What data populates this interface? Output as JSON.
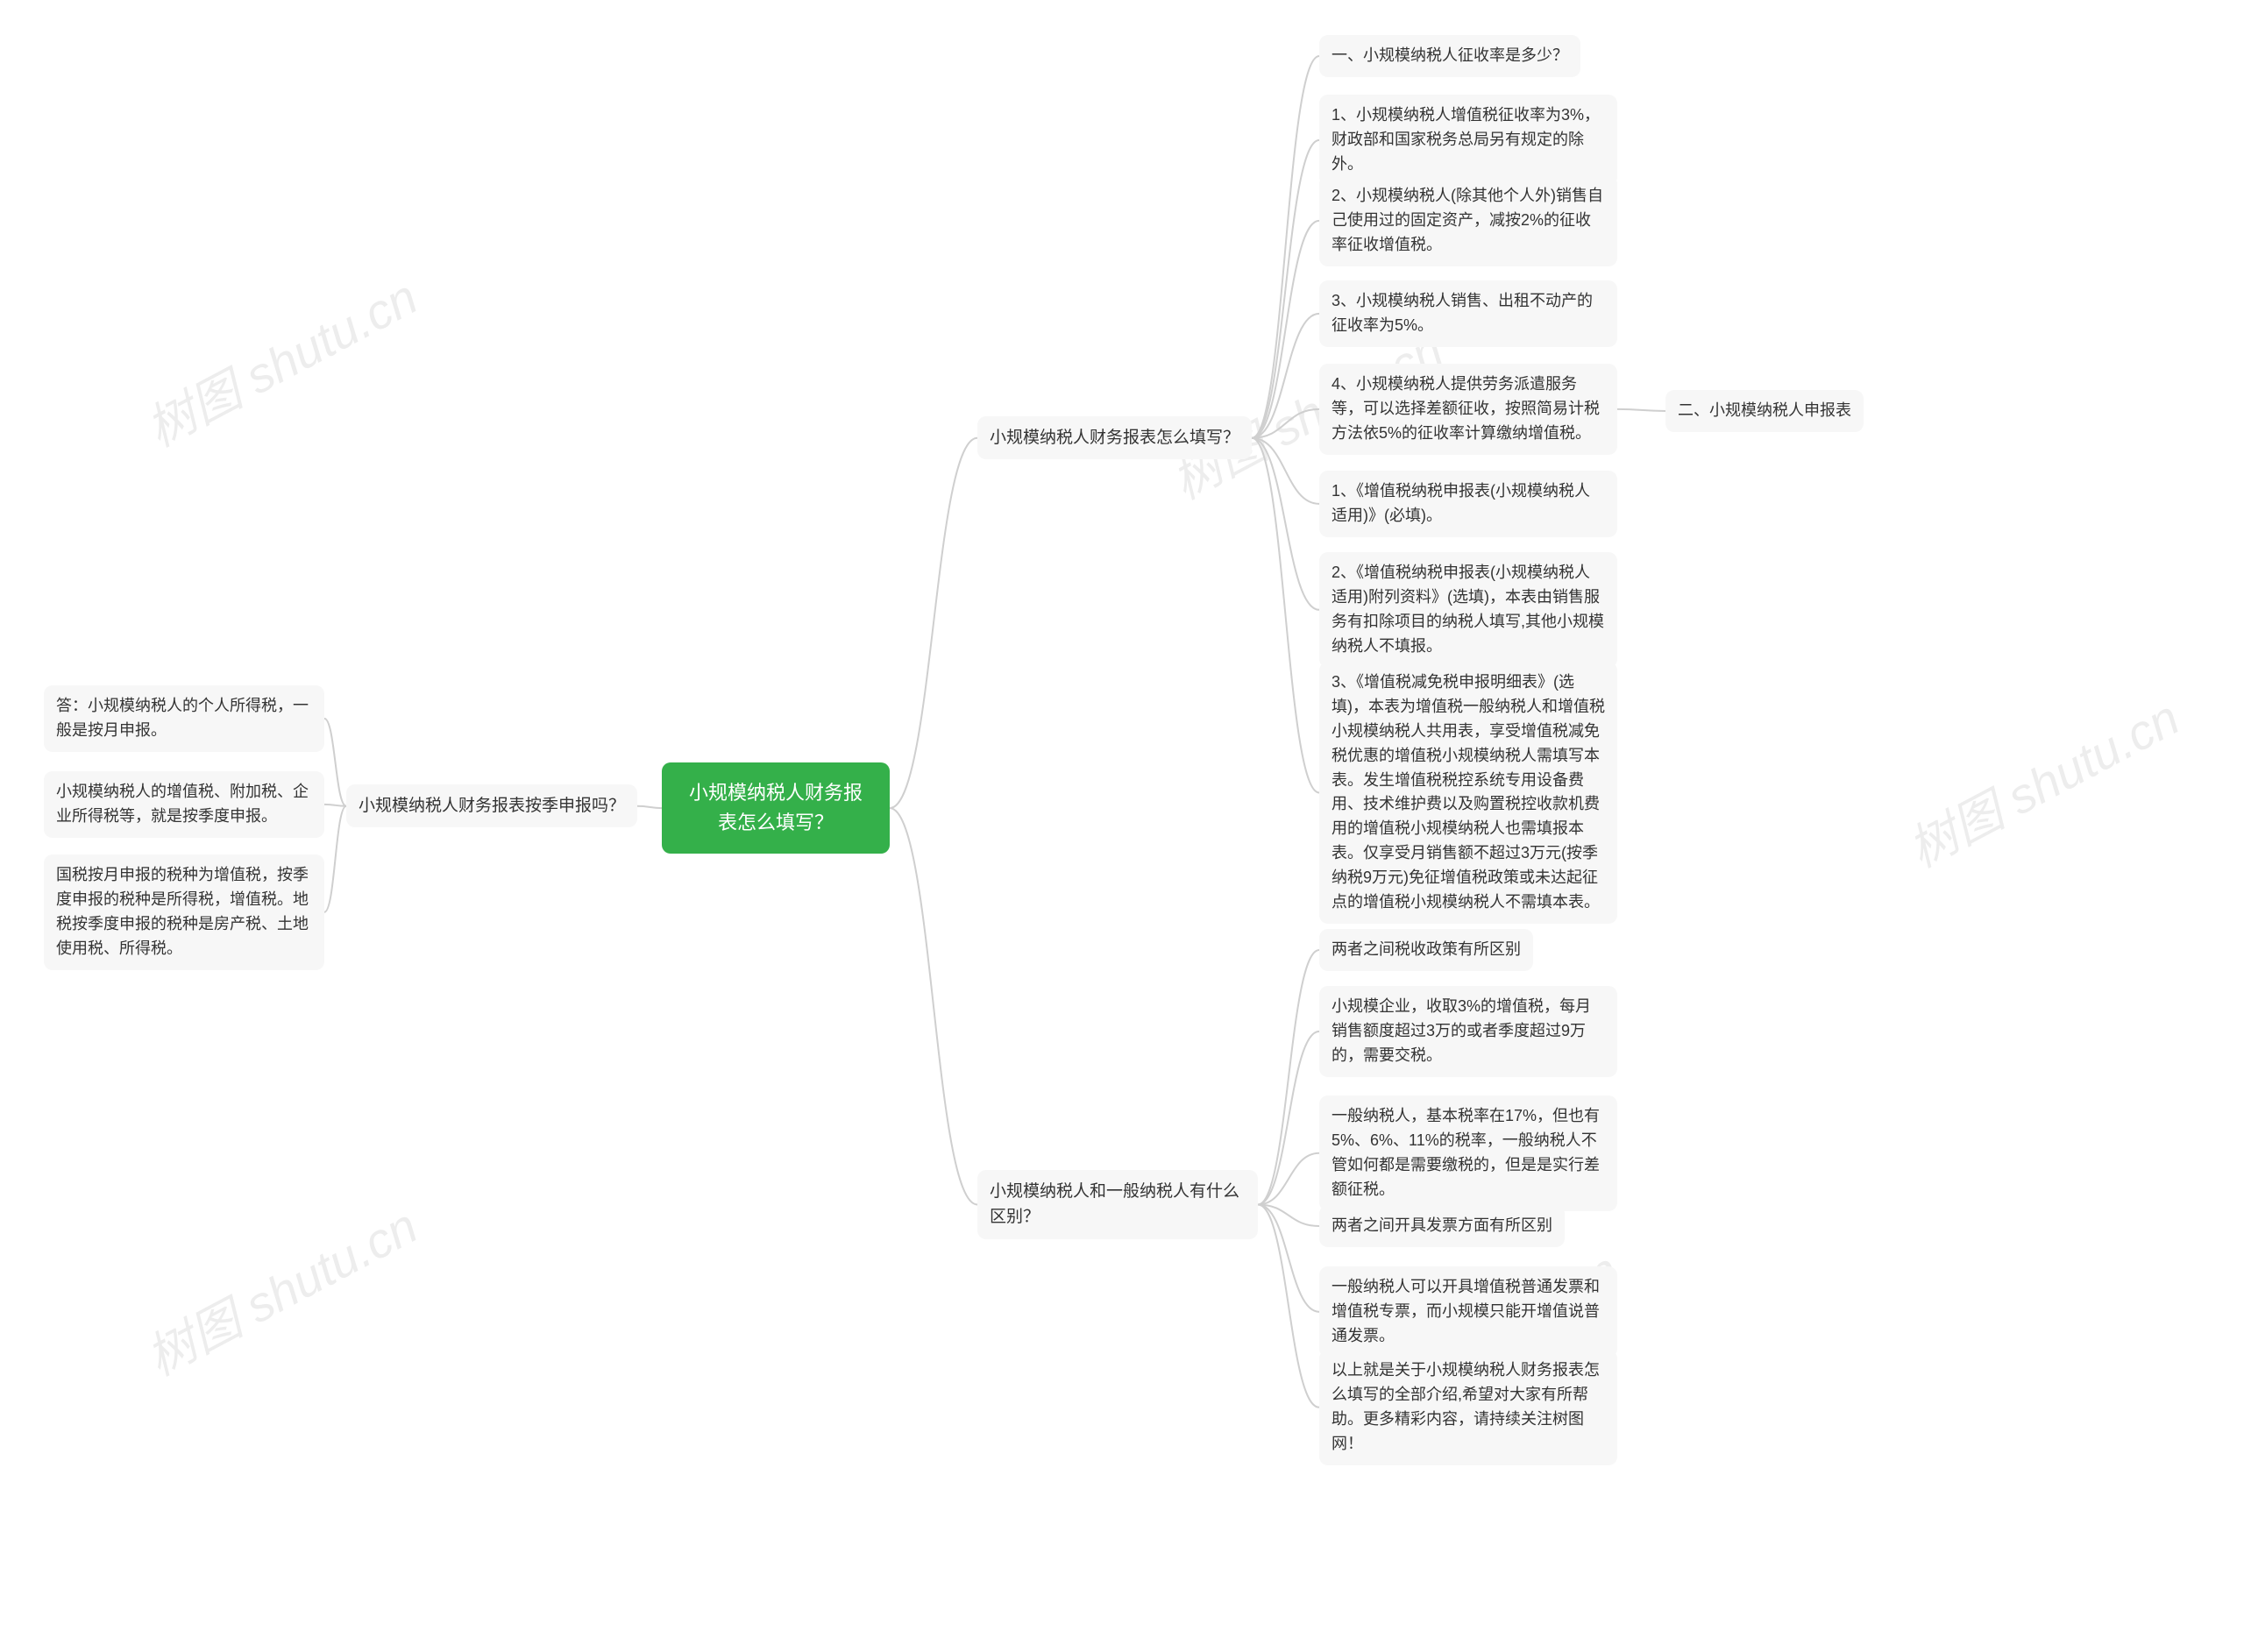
{
  "watermark": "树图 shutu.cn",
  "root": {
    "text": "小规模纳税人财务报表怎么填写？"
  },
  "left": {
    "branch": "小规模纳税人财务报表按季申报吗？",
    "leaves": [
      "答：小规模纳税人的个人所得税，一般是按月申报。",
      "小规模纳税人的增值税、附加税、企业所得税等，就是按季度申报。",
      "国税按月申报的税种为增值税，按季度申报的税种是所得税，增值税。地税按季度申报的税种是房产税、土地使用税、所得税。"
    ]
  },
  "right1": {
    "branch": "小规模纳税人财务报表怎么填写？",
    "leaves": [
      "一、小规模纳税人征收率是多少？",
      "1、小规模纳税人增值税征收率为3%，财政部和国家税务总局另有规定的除外。",
      "2、小规模纳税人(除其他个人外)销售自己使用过的固定资产，减按2%的征收率征收增值税。",
      "3、小规模纳税人销售、出租不动产的征收率为5%。",
      "4、小规模纳税人提供劳务派遣服务等，可以选择差额征收，按照简易计税方法依5%的征收率计算缴纳增值税。",
      "1、《增值税纳税申报表(小规模纳税人适用)》(必填)。",
      "2、《增值税纳税申报表(小规模纳税人适用)附列资料》(选填)，本表由销售服务有扣除项目的纳税人填写,其他小规模纳税人不填报。",
      "3、《增值税减免税申报明细表》(选填)，本表为增值税一般纳税人和增值税小规模纳税人共用表，享受增值税减免税优惠的增值税小规模纳税人需填写本表。发生增值税税控系统专用设备费用、技术维护费以及购置税控收款机费用的增值税小规模纳税人也需填报本表。仅享受月销售额不超过3万元(按季纳税9万元)免征增值税政策或未达起征点的增值税小规模纳税人不需填本表。"
    ],
    "extra": "二、小规模纳税人申报表"
  },
  "right2": {
    "branch": "小规模纳税人和一般纳税人有什么区别？",
    "leaves": [
      "两者之间税收政策有所区别",
      "小规模企业，收取3%的增值税，每月销售额度超过3万的或者季度超过9万的，需要交税。",
      "一般纳税人，基本税率在17%，但也有5%、6%、11%的税率，一般纳税人不管如何都是需要缴税的，但是是实行差额征税。",
      "两者之间开具发票方面有所区别",
      "一般纳税人可以开具增值税普通发票和增值税专票，而小规模只能开增值说普通发票。",
      "以上就是关于小规模纳税人财务报表怎么填写的全部介绍,希望对大家有所帮助。更多精彩内容，请持续关注树图网！"
    ]
  },
  "colors": {
    "root_bg": "#34b04a",
    "root_fg": "#ffffff",
    "node_bg": "#f7f7f7",
    "node_fg": "#333333",
    "connector": "#cfcfcf",
    "background": "#ffffff"
  },
  "layout": {
    "type": "mindmap",
    "orientation": "horizontal-bidirectional"
  }
}
